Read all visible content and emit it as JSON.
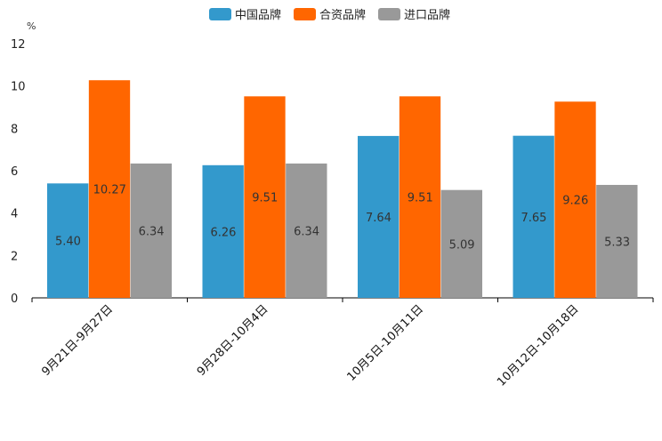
{
  "chart_data": {
    "type": "bar",
    "title": "",
    "xlabel": "",
    "ylabel": "%",
    "ylim": [
      0,
      12
    ],
    "yticks": [
      0,
      2,
      4,
      6,
      8,
      10,
      12
    ],
    "grid": false,
    "legend_position": "top-center",
    "categories": [
      "9月21日-9月27日",
      "9月28日-10月4日",
      "10月5日-10月11日",
      "10月12日-10月18日"
    ],
    "series": [
      {
        "name": "中国品牌",
        "color": "#3399cc",
        "values": [
          5.4,
          6.26,
          7.64,
          7.65
        ],
        "labels": [
          "5.40",
          "6.26",
          "7.64",
          "7.65"
        ]
      },
      {
        "name": "合资品牌",
        "color": "#ff6600",
        "values": [
          10.27,
          9.51,
          9.51,
          9.26
        ],
        "labels": [
          "10.27",
          "9.51",
          "9.51",
          "9.26"
        ]
      },
      {
        "name": "进口品牌",
        "color": "#999999",
        "values": [
          6.34,
          6.34,
          5.09,
          5.33
        ],
        "labels": [
          "6.34",
          "6.34",
          "5.09",
          "5.33"
        ]
      }
    ]
  }
}
